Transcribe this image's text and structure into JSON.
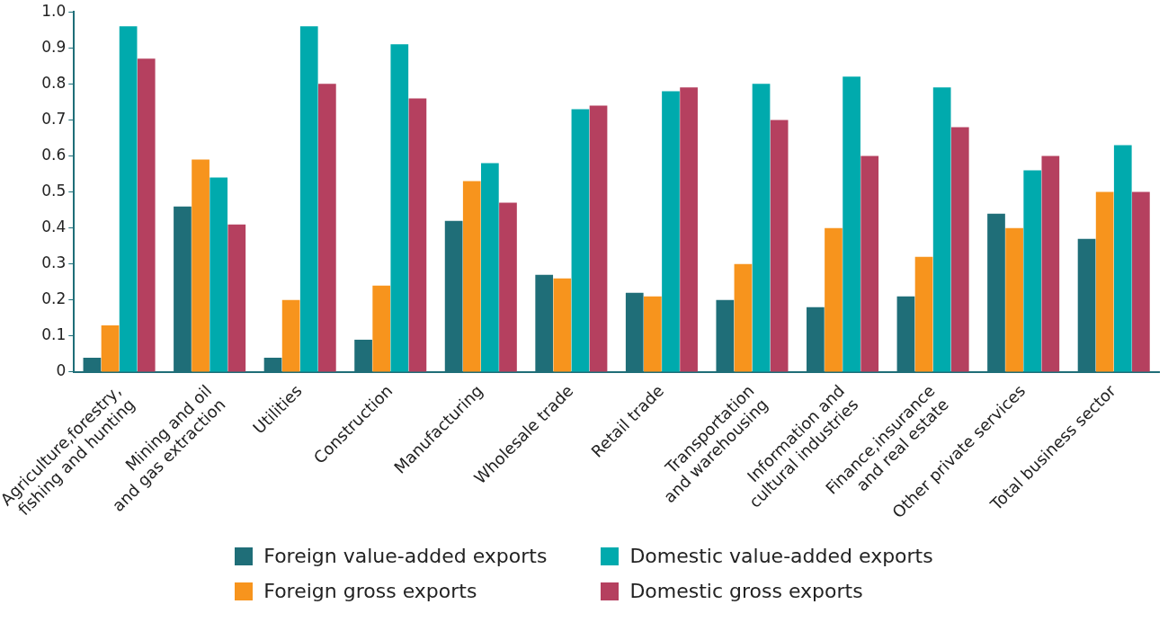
{
  "chart_data": {
    "type": "bar",
    "categories": [
      "Agriculture,forestry,\nfishing and hunting",
      "Mining and oil\nand gas extraction",
      "Utilities",
      "Construction",
      "Manufacturing",
      "Wholesale trade",
      "Retail trade",
      "Transportation\nand warehousing",
      "Information and\ncultural industries",
      "Finance,insurance\nand real estate",
      "Other private services",
      "Total business sector"
    ],
    "series": [
      {
        "name": "Foreign value-added exports",
        "color": "#1f6e78",
        "values": [
          0.04,
          0.46,
          0.04,
          0.09,
          0.42,
          0.27,
          0.22,
          0.2,
          0.18,
          0.21,
          0.44,
          0.37
        ]
      },
      {
        "name": "Foreign gross exports",
        "color": "#f7941d",
        "values": [
          0.13,
          0.59,
          0.2,
          0.24,
          0.53,
          0.26,
          0.21,
          0.3,
          0.4,
          0.32,
          0.4,
          0.5
        ]
      },
      {
        "name": "Domestic value-added exports",
        "color": "#00aaad",
        "values": [
          0.96,
          0.54,
          0.96,
          0.91,
          0.58,
          0.73,
          0.78,
          0.8,
          0.82,
          0.79,
          0.56,
          0.63
        ]
      },
      {
        "name": "Domestic gross exports",
        "color": "#b5405f",
        "values": [
          0.87,
          0.41,
          0.8,
          0.76,
          0.47,
          0.74,
          0.79,
          0.7,
          0.6,
          0.68,
          0.6,
          0.5
        ]
      }
    ],
    "ylim": [
      0,
      1
    ],
    "yticks": [
      0,
      0.1,
      0.2,
      0.3,
      0.4,
      0.5,
      0.6,
      0.7,
      0.8,
      0.9,
      {
        "value": 1,
        "label": "1.0"
      }
    ],
    "grid": false,
    "legend": "bottom"
  }
}
